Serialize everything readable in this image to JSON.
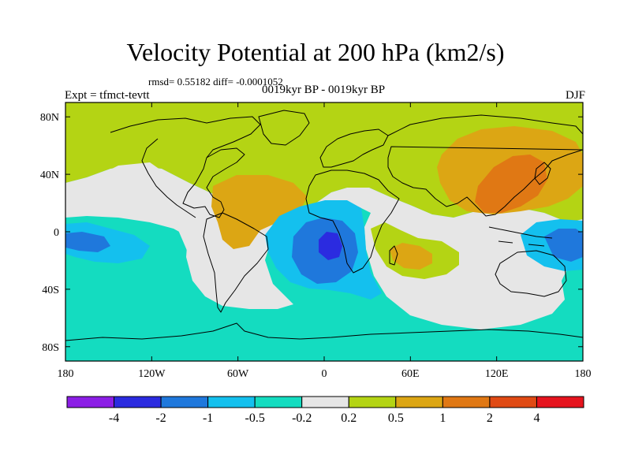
{
  "title": "Velocity Potential at 200 hPa (km2/s)",
  "stats": "rmsd= 0.55182 diff= -0.0001052",
  "period": "0019kyr BP - 0019kyr BP",
  "experiment": "Expt = tfmct-tevtt",
  "season": "DJF",
  "map": {
    "projection": "cylindrical-equidistant",
    "lon_range": [
      -180,
      180
    ],
    "lat_range": [
      -90,
      90
    ],
    "lat_tick_labels": [
      "80N",
      "40N",
      "0",
      "40S",
      "80S"
    ],
    "lon_tick_labels": [
      "180",
      "120W",
      "60W",
      "0",
      "60E",
      "120E",
      "180"
    ]
  },
  "colorbar": {
    "labels": [
      "-4",
      "-2",
      "-1",
      "-0.5",
      "-0.2",
      "0.2",
      "0.5",
      "1",
      "2",
      "4"
    ],
    "colors": [
      "#8c1ee6",
      "#2b2be0",
      "#1f78dc",
      "#14c0ee",
      "#14dcc0",
      "#e6e6e6",
      "#b4d414",
      "#dca614",
      "#e07814",
      "#e04a14",
      "#e6141e"
    ]
  }
}
